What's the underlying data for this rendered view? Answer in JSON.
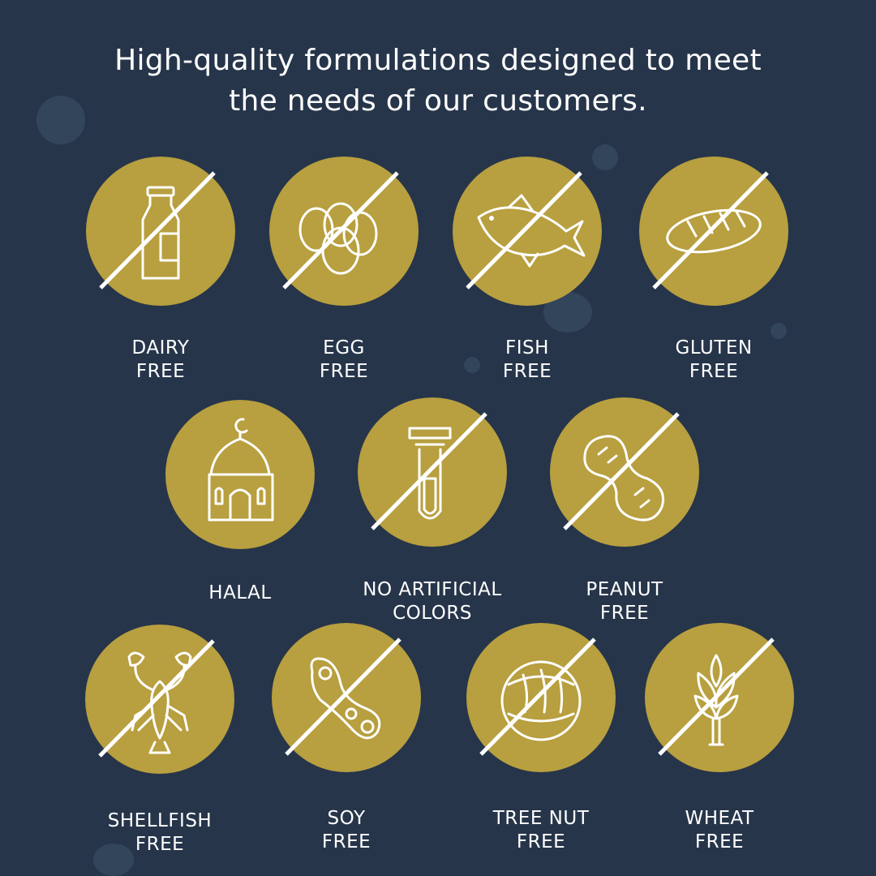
{
  "headline": {
    "line1": "High-quality formulations designed to meet",
    "line2": "the needs of our customers."
  },
  "colors": {
    "background": "#26354a",
    "badge": "#b89f3f",
    "icon": "#ffffff"
  },
  "badges": [
    {
      "icon": "milk-bottle-icon",
      "line1": "DAIRY",
      "line2": "FREE",
      "crossed": true
    },
    {
      "icon": "eggs-icon",
      "line1": "EGG",
      "line2": "FREE",
      "crossed": true
    },
    {
      "icon": "fish-icon",
      "line1": "FISH",
      "line2": "FREE",
      "crossed": true
    },
    {
      "icon": "bread-icon",
      "line1": "GLUTEN",
      "line2": "FREE",
      "crossed": true
    },
    {
      "icon": "mosque-icon",
      "line1": "HALAL",
      "line2": "",
      "crossed": false
    },
    {
      "icon": "test-tube-icon",
      "line1": "NO ARTIFICIAL",
      "line2": "COLORS",
      "crossed": true
    },
    {
      "icon": "peanut-icon",
      "line1": "PEANUT",
      "line2": "FREE",
      "crossed": true
    },
    {
      "icon": "lobster-icon",
      "line1": "SHELLFISH",
      "line2": "FREE",
      "crossed": true
    },
    {
      "icon": "soybean-icon",
      "line1": "SOY",
      "line2": "FREE",
      "crossed": true
    },
    {
      "icon": "hazelnut-icon",
      "line1": "TREE NUT",
      "line2": "FREE",
      "crossed": true
    },
    {
      "icon": "wheat-icon",
      "line1": "WHEAT",
      "line2": "FREE",
      "crossed": true
    }
  ]
}
